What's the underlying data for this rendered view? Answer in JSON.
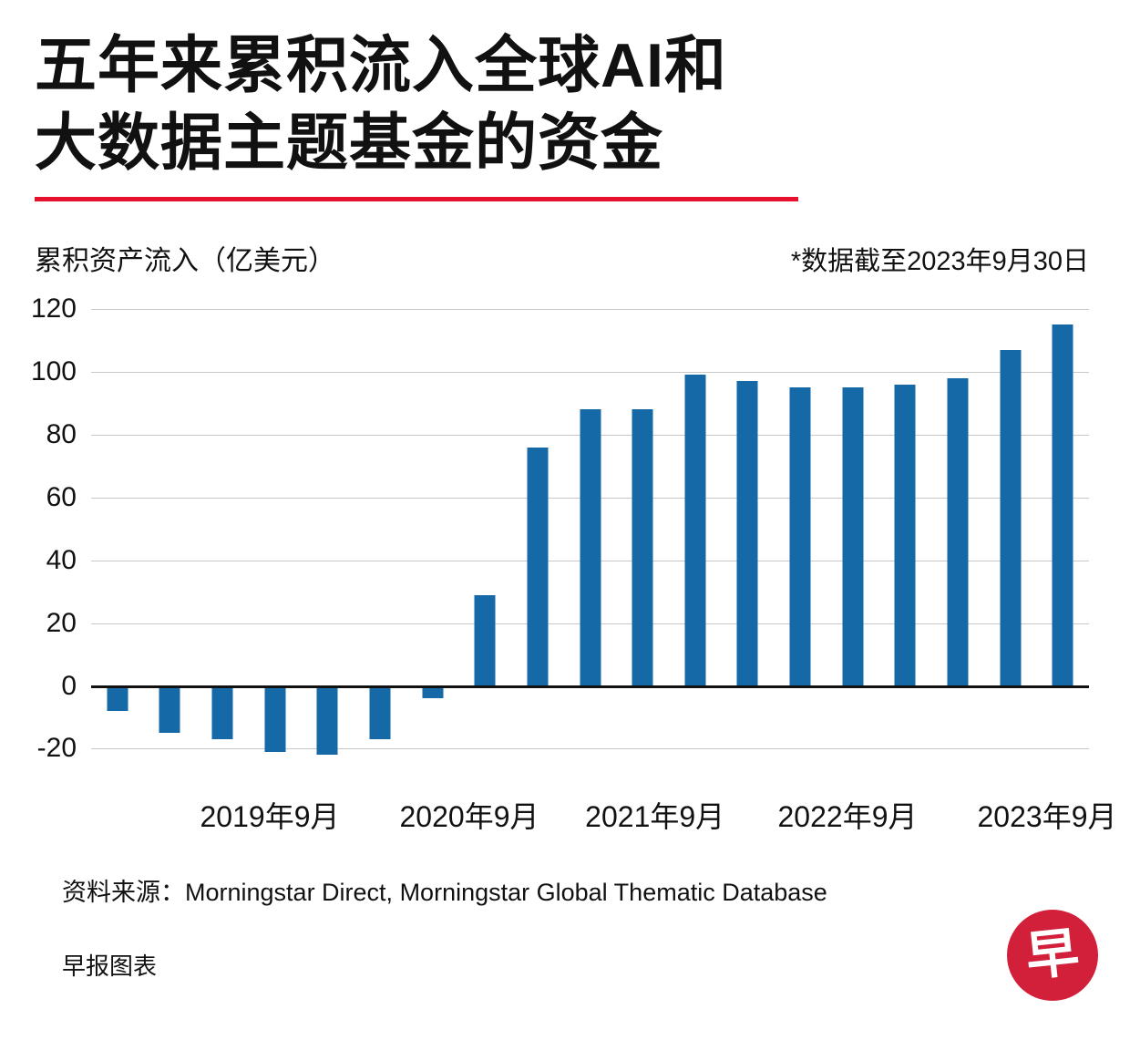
{
  "title_lines": [
    "五年来累积流入全球AI和",
    "大数据主题基金的资金"
  ],
  "y_axis_label": "累积资产流入（亿美元）",
  "note": "*数据截至2023年9月30日",
  "source": "资料来源：Morningstar Direct, Morningstar Global Thematic Database",
  "credit": "早报图表",
  "logo_char": "早",
  "colors": {
    "accent_red": "#e8112d",
    "bar_blue": "#1569a7",
    "gridline": "#c8c8c8",
    "zero_line": "#111111",
    "logo_red": "#d2203a"
  },
  "chart_data": {
    "type": "bar",
    "title": "五年来累积流入全球AI和大数据主题基金的资金",
    "ylabel": "累积资产流入（亿美元）",
    "values": [
      -8,
      -15,
      -17,
      -21,
      -22,
      -17,
      -4,
      29,
      76,
      88,
      88,
      99,
      97,
      95,
      95,
      96,
      98,
      107,
      115
    ],
    "y_ticks": [
      120,
      100,
      80,
      60,
      40,
      20,
      0,
      -20
    ],
    "ylim": [
      -28,
      120
    ],
    "bar_color": "#1569a7",
    "grid": true,
    "legend": "none",
    "x_tick_labels": [
      {
        "label": "2019年9月",
        "pos_pct": 17.9
      },
      {
        "label": "2020年9月",
        "pos_pct": 37.9
      },
      {
        "label": "2021年9月",
        "pos_pct": 56.5
      },
      {
        "label": "2022年9月",
        "pos_pct": 75.8
      },
      {
        "label": "2023年9月",
        "pos_pct": 95.8
      }
    ]
  }
}
